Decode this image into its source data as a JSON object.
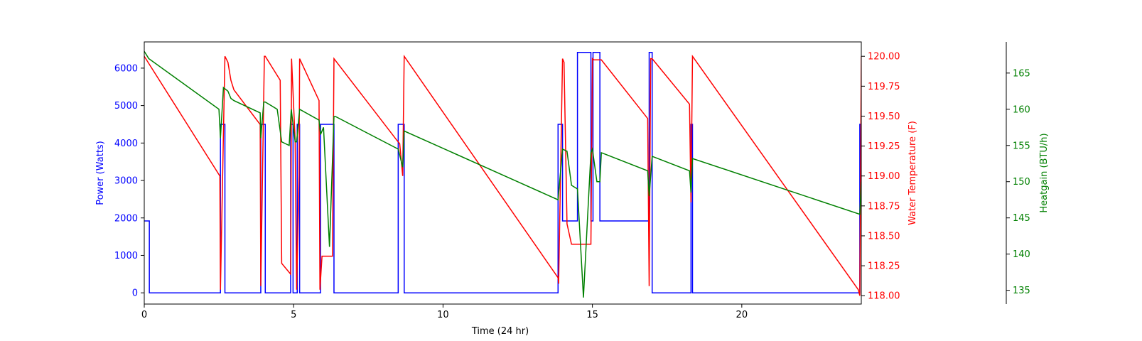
{
  "chart_data": {
    "type": "line",
    "title": "",
    "xlabel": "Time (24 hr)",
    "xlim": [
      0,
      24
    ],
    "x_ticks": [
      0,
      5,
      10,
      15,
      20
    ],
    "grid": false,
    "axes": [
      {
        "name": "Power (Watts)",
        "side": "left",
        "color": "#0000ff",
        "ylim": [
          -300,
          6700
        ],
        "ticks": [
          0,
          1000,
          2000,
          3000,
          4000,
          5000,
          6000
        ]
      },
      {
        "name": "Water Temperature (F)",
        "side": "right",
        "color": "#ff0000",
        "ylim": [
          117.93,
          120.12
        ],
        "ticks": [
          "118.00",
          "118.25",
          "118.50",
          "118.75",
          "119.00",
          "119.25",
          "119.50",
          "119.75",
          "120.00"
        ]
      },
      {
        "name": "Heatgain (BTU/h)",
        "side": "right-outer",
        "color": "#008000",
        "ylim": [
          133.1,
          169.3
        ],
        "ticks": [
          135,
          140,
          145,
          150,
          155,
          160,
          165
        ]
      }
    ],
    "series": [
      {
        "name": "Power (Watts)",
        "axis": 0,
        "color": "#0000ff",
        "step": true,
        "x": [
          0,
          0.17,
          0.17,
          2.55,
          2.55,
          2.7,
          2.7,
          3.9,
          3.9,
          4.05,
          4.05,
          4.9,
          4.9,
          4.98,
          4.98,
          5.12,
          5.12,
          5.2,
          5.2,
          5.9,
          5.9,
          6.35,
          6.35,
          8.5,
          8.5,
          8.7,
          8.7,
          13.85,
          13.85,
          14.0,
          14.0,
          14.5,
          14.5,
          14.95,
          14.95,
          15.02,
          15.02,
          15.25,
          15.25,
          16.9,
          16.9,
          17.0,
          17.0,
          18.3,
          18.3,
          18.35,
          18.35,
          23.95,
          23.95,
          24.0
        ],
        "y": [
          1920,
          1920,
          0,
          0,
          4500,
          4500,
          0,
          0,
          4500,
          4500,
          0,
          0,
          4500,
          4500,
          0,
          0,
          4500,
          4500,
          0,
          0,
          4500,
          4500,
          0,
          0,
          4500,
          4500,
          0,
          0,
          4500,
          4500,
          1920,
          1920,
          6420,
          6420,
          1920,
          1920,
          6420,
          6420,
          1920,
          1920,
          6420,
          6420,
          0,
          0,
          4500,
          4500,
          0,
          0,
          4500,
          4500
        ]
      },
      {
        "name": "Water Temperature (F)",
        "axis": 1,
        "color": "#ff0000",
        "step": false,
        "x": [
          0,
          2.53,
          2.55,
          2.7,
          2.8,
          2.9,
          3.0,
          3.88,
          3.9,
          4.02,
          4.05,
          4.55,
          4.6,
          4.9,
          4.93,
          5.05,
          5.1,
          5.18,
          5.2,
          5.85,
          5.88,
          5.95,
          6.0,
          6.3,
          6.35,
          8.45,
          8.55,
          8.65,
          8.7,
          13.85,
          13.87,
          14.0,
          14.05,
          14.15,
          14.3,
          14.5,
          14.95,
          15.0,
          15.05,
          15.3,
          16.85,
          16.9,
          16.95,
          17.0,
          18.25,
          18.3,
          18.35,
          23.9,
          23.95,
          24.0
        ],
        "y": [
          120.0,
          119.0,
          118.05,
          120.0,
          119.95,
          119.8,
          119.72,
          119.43,
          118.08,
          120.0,
          120.0,
          119.8,
          118.27,
          118.18,
          119.98,
          119.3,
          118.05,
          119.0,
          119.98,
          119.63,
          118.05,
          118.33,
          118.33,
          118.33,
          119.98,
          119.3,
          119.27,
          119.0,
          120.0,
          118.15,
          118.1,
          119.98,
          119.95,
          118.6,
          118.43,
          118.43,
          118.43,
          119.98,
          119.97,
          119.97,
          119.48,
          118.08,
          119.98,
          119.98,
          119.6,
          118.78,
          120.0,
          118.05,
          118.0,
          120.0
        ]
      },
      {
        "name": "Heatgain (BTU/h)",
        "axis": 2,
        "color": "#008000",
        "step": false,
        "x": [
          0,
          0.15,
          2.5,
          2.55,
          2.65,
          2.8,
          2.9,
          3.0,
          3.88,
          3.9,
          4.0,
          4.05,
          4.45,
          4.6,
          4.85,
          4.92,
          5.05,
          5.1,
          5.2,
          5.85,
          5.9,
          6.0,
          6.2,
          6.35,
          6.4,
          8.5,
          8.65,
          8.7,
          13.85,
          14.0,
          14.15,
          14.3,
          14.5,
          14.7,
          14.95,
          15.0,
          15.15,
          15.25,
          15.3,
          16.85,
          16.9,
          17.0,
          18.25,
          18.3,
          18.35,
          23.95,
          24.0
        ],
        "y": [
          168,
          167,
          160,
          156,
          163,
          162.5,
          161.5,
          161.2,
          159.5,
          156,
          161,
          161,
          160,
          155.5,
          155,
          160,
          155.5,
          155.5,
          160,
          158.5,
          156.5,
          157.5,
          141,
          159,
          159,
          154.5,
          152,
          157,
          147.5,
          154.5,
          154.2,
          149.5,
          149,
          134,
          154,
          154.5,
          150,
          150,
          154,
          151.5,
          148,
          153.5,
          151.5,
          148.5,
          153.2,
          145.5,
          150
        ]
      }
    ]
  }
}
